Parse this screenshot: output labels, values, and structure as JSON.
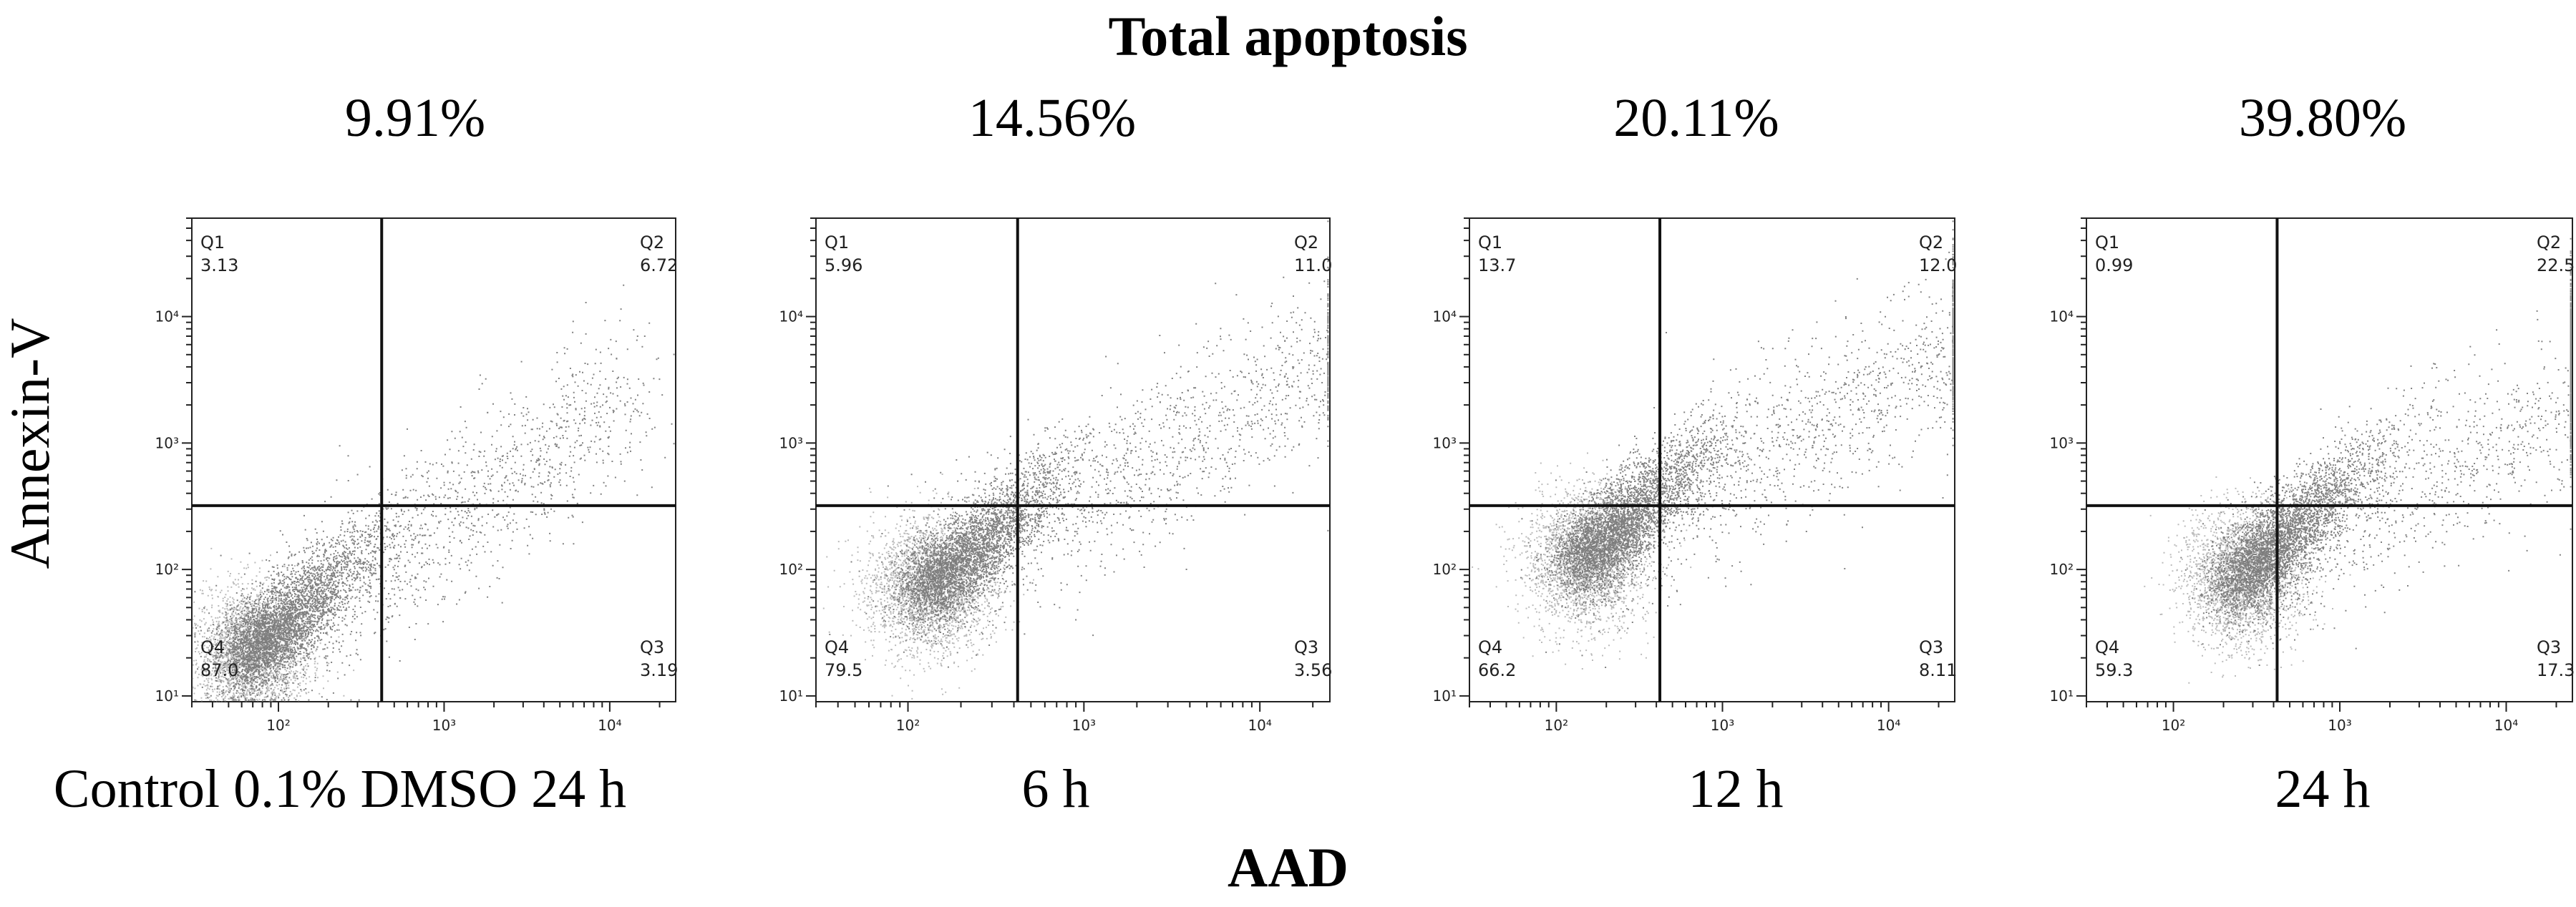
{
  "title": "Total apoptosis",
  "xlabel": "AAD",
  "ylabel": "Annexin-V",
  "chart_data": [
    {
      "type": "scatter",
      "condition": "Control 0.1% DMSO 24 h",
      "total_apoptosis": "9.91%",
      "quadrants": {
        "Q1": "3.13",
        "Q2": "6.72",
        "Q3": "3.19",
        "Q4": "87.0"
      },
      "quadrant_names": [
        "Q1",
        "Q2",
        "Q3",
        "Q4"
      ],
      "x_axis": {
        "scale": "log",
        "range": [
          30,
          25000
        ],
        "ticks": [
          "10²",
          "10³",
          "10⁴"
        ],
        "gate": 420
      },
      "y_axis": {
        "scale": "log",
        "range": [
          9,
          60000
        ],
        "ticks": [
          "10¹",
          "10²",
          "10³",
          "10⁴"
        ],
        "gate": 320
      }
    },
    {
      "type": "scatter",
      "condition": "6 h",
      "total_apoptosis": "14.56%",
      "quadrants": {
        "Q1": "5.96",
        "Q2": "11.0",
        "Q3": "3.56",
        "Q4": "79.5"
      },
      "quadrant_names": [
        "Q1",
        "Q2",
        "Q3",
        "Q4"
      ],
      "x_axis": {
        "scale": "log",
        "range": [
          30,
          25000
        ],
        "ticks": [
          "10²",
          "10³",
          "10⁴"
        ],
        "gate": 420
      },
      "y_axis": {
        "scale": "log",
        "range": [
          9,
          60000
        ],
        "ticks": [
          "10¹",
          "10²",
          "10³",
          "10⁴"
        ],
        "gate": 320
      }
    },
    {
      "type": "scatter",
      "condition": "12 h",
      "total_apoptosis": "20.11%",
      "quadrants": {
        "Q1": "13.7",
        "Q2": "12.0",
        "Q3": "8.11",
        "Q4": "66.2"
      },
      "quadrant_names": [
        "Q1",
        "Q2",
        "Q3",
        "Q4"
      ],
      "x_axis": {
        "scale": "log",
        "range": [
          30,
          25000
        ],
        "ticks": [
          "10²",
          "10³",
          "10⁴"
        ],
        "gate": 420
      },
      "y_axis": {
        "scale": "log",
        "range": [
          9,
          60000
        ],
        "ticks": [
          "10¹",
          "10²",
          "10³",
          "10⁴"
        ],
        "gate": 320
      }
    },
    {
      "type": "scatter",
      "condition": "24 h",
      "total_apoptosis": "39.80%",
      "quadrants": {
        "Q1": "0.99",
        "Q2": "22.5",
        "Q3": "17.3",
        "Q4": "59.3"
      },
      "quadrant_names": [
        "Q1",
        "Q2",
        "Q3",
        "Q4"
      ],
      "x_axis": {
        "scale": "log",
        "range": [
          30,
          25000
        ],
        "ticks": [
          "10²",
          "10³",
          "10⁴"
        ],
        "gate": 420
      },
      "y_axis": {
        "scale": "log",
        "range": [
          9,
          60000
        ],
        "ticks": [
          "10¹",
          "10²",
          "10³",
          "10⁴"
        ],
        "gate": 320
      }
    }
  ]
}
